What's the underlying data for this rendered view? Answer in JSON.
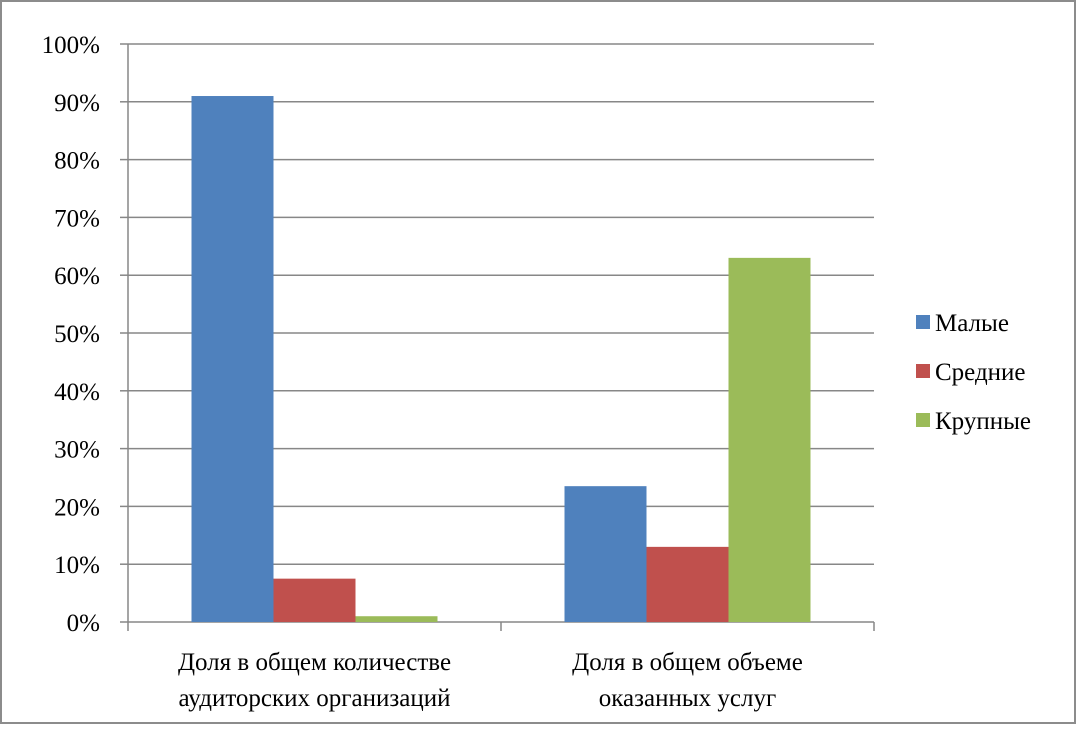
{
  "chart_data": {
    "type": "bar",
    "categories": [
      [
        "Доля в общем количестве",
        "аудиторских организаций"
      ],
      [
        "Доля в общем объеме",
        "оказанных  услуг"
      ]
    ],
    "series": [
      {
        "name": "Малые",
        "color": "#4f81bd",
        "values": [
          91,
          23.5
        ]
      },
      {
        "name": "Средние",
        "color": "#c0504d",
        "values": [
          7.5,
          13
        ]
      },
      {
        "name": "Крупные",
        "color": "#9bbb59",
        "values": [
          1,
          63
        ]
      }
    ],
    "yticks": [
      "0%",
      "10%",
      "20%",
      "30%",
      "40%",
      "50%",
      "60%",
      "70%",
      "80%",
      "90%",
      "100%"
    ],
    "ylim": [
      0,
      100
    ],
    "grid": true,
    "legend_position": "right"
  }
}
